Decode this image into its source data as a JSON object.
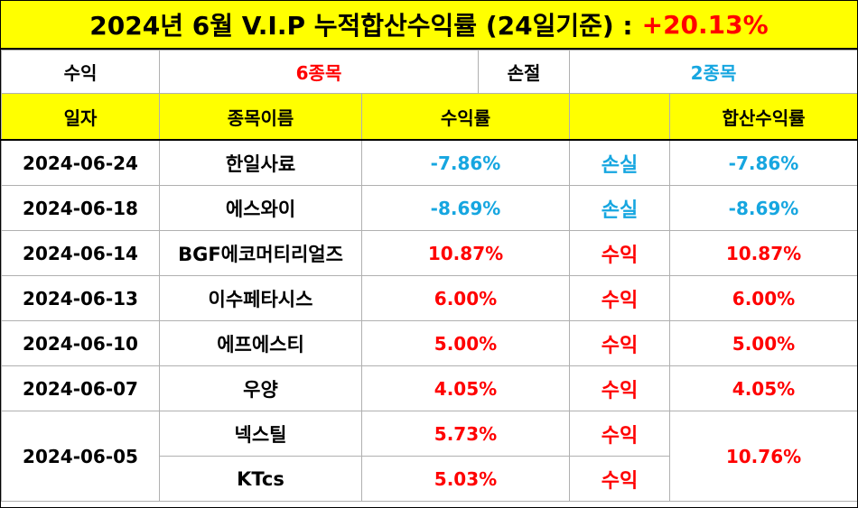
{
  "title": {
    "text": "2024년 6월 V.I.P 누적합산수익률 (24일기준) :",
    "total_return": "+20.13%"
  },
  "summary": {
    "profit_label": "수익",
    "profit_count": "6종목",
    "loss_label": "손절",
    "loss_count": "2종목"
  },
  "headers": {
    "date": "일자",
    "name": "종목이름",
    "return": "수익률",
    "status": "",
    "combined": "합산수익률"
  },
  "rows": [
    {
      "date": "2024-06-24",
      "name": "한일사료",
      "return": "-7.86%",
      "status": "손실",
      "combined": "-7.86%"
    },
    {
      "date": "2024-06-18",
      "name": "에스와이",
      "return": "-8.69%",
      "status": "손실",
      "combined": "-8.69%"
    },
    {
      "date": "2024-06-14",
      "name": "BGF에코머티리얼즈",
      "return": "10.87%",
      "status": "수익",
      "combined": "10.87%"
    },
    {
      "date": "2024-06-13",
      "name": "이수페타시스",
      "return": "6.00%",
      "status": "수익",
      "combined": "6.00%"
    },
    {
      "date": "2024-06-10",
      "name": "에프에스티",
      "return": "5.00%",
      "status": "수익",
      "combined": "5.00%"
    },
    {
      "date": "2024-06-07",
      "name": "우양",
      "return": "4.05%",
      "status": "수익",
      "combined": "4.05%"
    }
  ],
  "grouped": {
    "date": "2024-06-05",
    "combined": "10.76%",
    "items": [
      {
        "name": "넥스틸",
        "return": "5.73%",
        "status": "수익"
      },
      {
        "name": "KTcs",
        "return": "5.03%",
        "status": "수익"
      }
    ]
  },
  "colors": {
    "header_bg": "#ffff00",
    "gain": "#ff0000",
    "loss": "#16a6e0"
  }
}
